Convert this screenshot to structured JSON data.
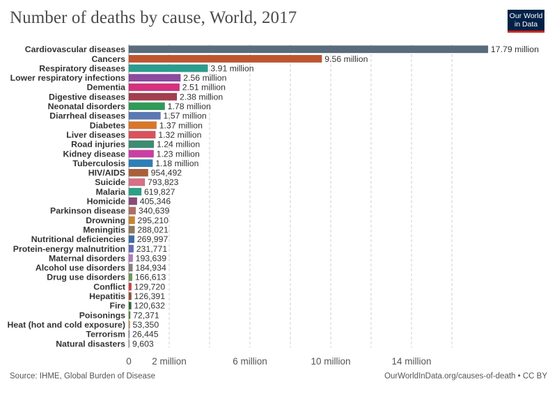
{
  "title": "Number of deaths by cause, World, 2017",
  "logo": {
    "line1": "Our World",
    "line2": "in Data",
    "bg": "#002147",
    "accent": "#ce261e"
  },
  "footer": {
    "source": "Source: IHME, Global Burden of Disease",
    "link": "OurWorldInData.org/causes-of-death • CC BY"
  },
  "chart_data": {
    "type": "bar",
    "orientation": "horizontal",
    "title": "Number of deaths by cause, World, 2017",
    "xlim": [
      0,
      18000000
    ],
    "grid": true,
    "x_ticks": [
      {
        "value": 0,
        "label": "0"
      },
      {
        "value": 2000000,
        "label": "2 million"
      },
      {
        "value": 6000000,
        "label": "6 million"
      },
      {
        "value": 10000000,
        "label": "10 million"
      },
      {
        "value": 14000000,
        "label": "14 million"
      }
    ],
    "gridlines": [
      0,
      2000000,
      4000000,
      6000000,
      8000000,
      10000000,
      12000000,
      14000000,
      16000000
    ],
    "bars": [
      {
        "category": "Cardiovascular diseases",
        "value": 17790000,
        "label": "17.79 million",
        "color": "#596b7d"
      },
      {
        "category": "Cancers",
        "value": 9560000,
        "label": "9.56 million",
        "color": "#c0542f"
      },
      {
        "category": "Respiratory diseases",
        "value": 3910000,
        "label": "3.91 million",
        "color": "#2a9d8f"
      },
      {
        "category": "Lower respiratory infections",
        "value": 2560000,
        "label": "2.56 million",
        "color": "#8c4aa0"
      },
      {
        "category": "Dementia",
        "value": 2510000,
        "label": "2.51 million",
        "color": "#d6307f"
      },
      {
        "category": "Digestive diseases",
        "value": 2380000,
        "label": "2.38 million",
        "color": "#a33e4e"
      },
      {
        "category": "Neonatal disorders",
        "value": 1780000,
        "label": "1.78 million",
        "color": "#2e9b56"
      },
      {
        "category": "Diarrheal diseases",
        "value": 1570000,
        "label": "1.57 million",
        "color": "#5a79b5"
      },
      {
        "category": "Diabetes",
        "value": 1370000,
        "label": "1.37 million",
        "color": "#d8772b"
      },
      {
        "category": "Liver diseases",
        "value": 1320000,
        "label": "1.32 million",
        "color": "#d9525e"
      },
      {
        "category": "Road injuries",
        "value": 1240000,
        "label": "1.24 million",
        "color": "#3e8c73"
      },
      {
        "category": "Kidney disease",
        "value": 1230000,
        "label": "1.23 million",
        "color": "#cc3ea3"
      },
      {
        "category": "Tuberculosis",
        "value": 1180000,
        "label": "1.18 million",
        "color": "#2d7fb8"
      },
      {
        "category": "HIV/AIDS",
        "value": 954492,
        "label": "954,492",
        "color": "#a8603a"
      },
      {
        "category": "Suicide",
        "value": 793823,
        "label": "793,823",
        "color": "#d76f87"
      },
      {
        "category": "Malaria",
        "value": 619827,
        "label": "619,827",
        "color": "#29a085"
      },
      {
        "category": "Homicide",
        "value": 405346,
        "label": "405,346",
        "color": "#8a4a78"
      },
      {
        "category": "Parkinson disease",
        "value": 340639,
        "label": "340,639",
        "color": "#b06f63"
      },
      {
        "category": "Drowning",
        "value": 295210,
        "label": "295,210",
        "color": "#c8872e"
      },
      {
        "category": "Meningitis",
        "value": 288021,
        "label": "288,021",
        "color": "#8f7a5a"
      },
      {
        "category": "Nutritional deficiencies",
        "value": 269997,
        "label": "269,997",
        "color": "#3b6fa8"
      },
      {
        "category": "Protein-energy malnutrition",
        "value": 231771,
        "label": "231,771",
        "color": "#6a6ab8"
      },
      {
        "category": "Maternal disorders",
        "value": 193639,
        "label": "193,639",
        "color": "#b47ac0"
      },
      {
        "category": "Alcohol use disorders",
        "value": 184934,
        "label": "184,934",
        "color": "#8b7f7f"
      },
      {
        "category": "Drug use disorders",
        "value": 166613,
        "label": "166,613",
        "color": "#6f9a57"
      },
      {
        "category": "Conflict",
        "value": 129720,
        "label": "129,720",
        "color": "#d93b45"
      },
      {
        "category": "Hepatitis",
        "value": 126391,
        "label": "126,391",
        "color": "#9c4d37"
      },
      {
        "category": "Fire",
        "value": 120632,
        "label": "120,632",
        "color": "#2f6b2f"
      },
      {
        "category": "Poisonings",
        "value": 72371,
        "label": "72,371",
        "color": "#5d8a3a"
      },
      {
        "category": "Heat (hot and cold exposure)",
        "value": 53350,
        "label": "53,350",
        "color": "#c79a5c"
      },
      {
        "category": "Terrorism",
        "value": 26445,
        "label": "26,445",
        "color": "#8a7a9a"
      },
      {
        "category": "Natural disasters",
        "value": 9603,
        "label": "9,603",
        "color": "#a0a0a0"
      }
    ]
  }
}
